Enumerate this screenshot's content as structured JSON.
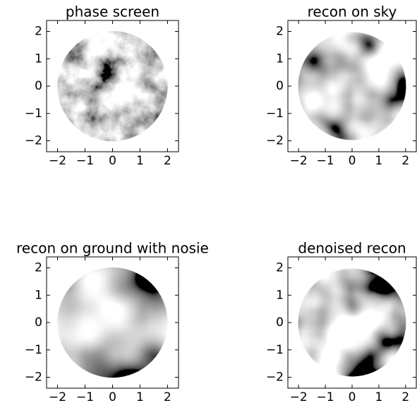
{
  "chart_data": [
    {
      "type": "image",
      "title": "phase screen",
      "xlim": [
        -2.4,
        2.4
      ],
      "ylim": [
        -2.4,
        2.4
      ],
      "xticks": [
        {
          "value": -2,
          "label": "−2"
        },
        {
          "value": -1,
          "label": "−1"
        },
        0,
        1,
        2
      ],
      "yticks": [
        {
          "value": -2,
          "label": "−2"
        },
        {
          "value": -1,
          "label": "−1"
        },
        0,
        1,
        2
      ]
    },
    {
      "type": "image",
      "title": "recon on sky",
      "xlim": [
        -2.4,
        2.4
      ],
      "ylim": [
        -2.4,
        2.4
      ],
      "xticks": [
        {
          "value": -2,
          "label": "−2"
        },
        {
          "value": -1,
          "label": "−1"
        },
        0,
        1,
        2
      ],
      "yticks": [
        {
          "value": -2,
          "label": "−2"
        },
        {
          "value": -1,
          "label": "−1"
        },
        0,
        1,
        2
      ]
    },
    {
      "type": "image",
      "title": "recon on ground with nosie",
      "xlim": [
        -2.4,
        2.4
      ],
      "ylim": [
        -2.4,
        2.4
      ],
      "xticks": [
        {
          "value": -2,
          "label": "−2"
        },
        {
          "value": -1,
          "label": "−1"
        },
        0,
        1,
        2
      ],
      "yticks": [
        {
          "value": -2,
          "label": "−2"
        },
        {
          "value": -1,
          "label": "−1"
        },
        0,
        1,
        2
      ]
    },
    {
      "type": "image",
      "title": "denoised recon",
      "xlim": [
        -2.4,
        2.4
      ],
      "ylim": [
        -2.4,
        2.4
      ],
      "xticks": [
        {
          "value": -2,
          "label": "−2"
        },
        {
          "value": -1,
          "label": "−1"
        },
        0,
        1,
        2
      ],
      "yticks": [
        {
          "value": -2,
          "label": "−2"
        },
        {
          "value": -1,
          "label": "−1"
        },
        0,
        1,
        2
      ]
    }
  ]
}
